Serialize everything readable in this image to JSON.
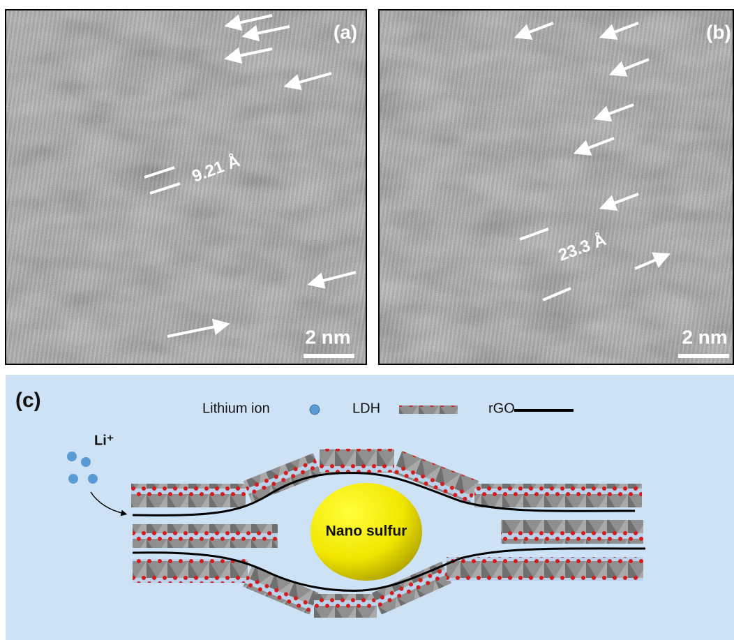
{
  "panels": [
    {
      "label": "(a)",
      "spacing": "9.21 Å",
      "scale_bar": "2 nm"
    },
    {
      "label": "(b)",
      "spacing": "23.3 Å",
      "scale_bar": "2 nm"
    }
  ],
  "schematic": {
    "label": "(c)",
    "legend": [
      "Lithium ion",
      "LDH",
      "rGO"
    ],
    "ion_label": "Li⁺",
    "core_label": "Nano sulfur"
  }
}
